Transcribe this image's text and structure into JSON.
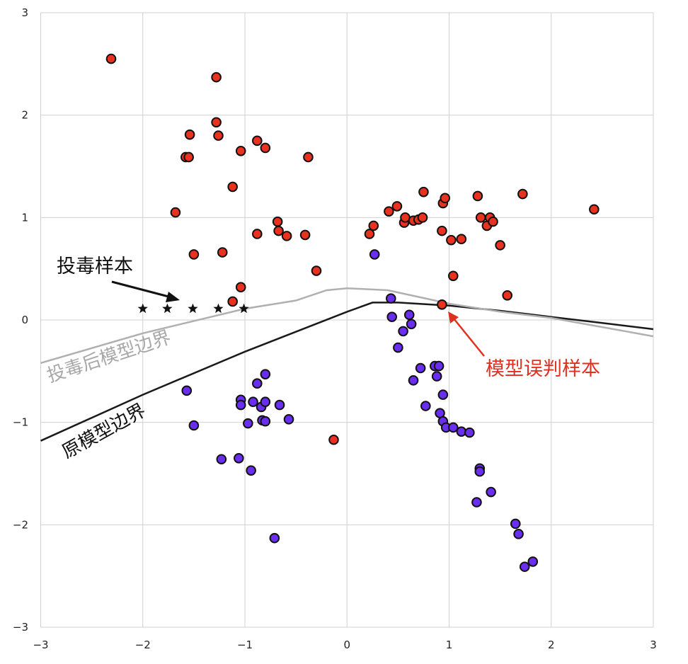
{
  "chart_data": {
    "type": "scatter",
    "xlim": [
      -3,
      3
    ],
    "ylim": [
      -3,
      3
    ],
    "x_ticks": [
      "−3",
      "−2",
      "−1",
      "0",
      "1",
      "2",
      "3"
    ],
    "y_ticks": [
      "3",
      "2",
      "1",
      "0",
      "−1",
      "−2",
      "−3"
    ],
    "grid": true,
    "colors": {
      "class_red": "#e8321f",
      "class_purple": "#6a2ef0",
      "poison_marker": "#111111",
      "poisoned_boundary": "#b0b0b0",
      "original_boundary": "#1a1a1a",
      "misclassified_label": "#e03020"
    },
    "series": [
      {
        "marker": "circle",
        "color": "class_red",
        "points": [
          [
            -2.31,
            2.55
          ],
          [
            -1.28,
            2.37
          ],
          [
            -1.28,
            1.93
          ],
          [
            -1.26,
            1.8
          ],
          [
            -1.54,
            1.81
          ],
          [
            -1.58,
            1.59
          ],
          [
            -1.55,
            1.59
          ],
          [
            -1.04,
            1.65
          ],
          [
            -0.88,
            1.75
          ],
          [
            -0.8,
            1.68
          ],
          [
            -0.38,
            1.59
          ],
          [
            -1.12,
            1.3
          ],
          [
            -1.68,
            1.05
          ],
          [
            -0.68,
            0.96
          ],
          [
            -0.67,
            0.87
          ],
          [
            -0.88,
            0.84
          ],
          [
            -0.59,
            0.82
          ],
          [
            -0.41,
            0.83
          ],
          [
            -1.5,
            0.64
          ],
          [
            -1.22,
            0.66
          ],
          [
            -0.3,
            0.48
          ],
          [
            -1.04,
            0.32
          ],
          [
            -1.12,
            0.18
          ],
          [
            -0.13,
            -1.17
          ],
          [
            0.22,
            0.84
          ],
          [
            0.26,
            0.92
          ],
          [
            0.41,
            1.06
          ],
          [
            0.49,
            1.11
          ],
          [
            0.56,
            0.95
          ],
          [
            0.57,
            1.0
          ],
          [
            0.65,
            0.97
          ],
          [
            0.7,
            0.98
          ],
          [
            0.74,
            1.0
          ],
          [
            0.75,
            1.25
          ],
          [
            0.94,
            1.14
          ],
          [
            0.96,
            1.19
          ],
          [
            0.93,
            0.87
          ],
          [
            1.02,
            0.78
          ],
          [
            1.12,
            0.79
          ],
          [
            1.04,
            0.43
          ],
          [
            1.28,
            1.21
          ],
          [
            1.31,
            1.0
          ],
          [
            1.37,
            0.92
          ],
          [
            1.4,
            1.0
          ],
          [
            1.43,
            0.96
          ],
          [
            1.5,
            0.73
          ],
          [
            1.57,
            0.24
          ],
          [
            1.72,
            1.23
          ],
          [
            2.42,
            1.08
          ],
          [
            0.93,
            0.15
          ]
        ]
      },
      {
        "marker": "circle",
        "color": "class_purple",
        "points": [
          [
            0.27,
            0.64
          ],
          [
            0.43,
            0.21
          ],
          [
            0.44,
            0.03
          ],
          [
            0.55,
            -0.11
          ],
          [
            0.61,
            0.05
          ],
          [
            0.63,
            -0.04
          ],
          [
            0.5,
            -0.27
          ],
          [
            0.65,
            -0.59
          ],
          [
            0.72,
            -0.47
          ],
          [
            0.77,
            -0.84
          ],
          [
            0.86,
            -0.45
          ],
          [
            0.88,
            -0.55
          ],
          [
            0.9,
            -0.45
          ],
          [
            0.91,
            -0.91
          ],
          [
            0.94,
            -0.73
          ],
          [
            0.94,
            -0.99
          ],
          [
            0.97,
            -1.05
          ],
          [
            1.04,
            -1.05
          ],
          [
            1.12,
            -1.09
          ],
          [
            1.2,
            -1.1
          ],
          [
            1.3,
            -1.45
          ],
          [
            1.3,
            -1.48
          ],
          [
            1.41,
            -1.68
          ],
          [
            1.27,
            -1.78
          ],
          [
            1.65,
            -1.99
          ],
          [
            1.68,
            -2.09
          ],
          [
            1.74,
            -2.41
          ],
          [
            1.82,
            -2.36
          ],
          [
            -1.57,
            -0.69
          ],
          [
            -1.5,
            -1.03
          ],
          [
            -1.23,
            -1.36
          ],
          [
            -1.06,
            -1.35
          ],
          [
            -1.04,
            -0.78
          ],
          [
            -1.04,
            -0.83
          ],
          [
            -0.97,
            -1.01
          ],
          [
            -0.92,
            -0.8
          ],
          [
            -0.88,
            -0.62
          ],
          [
            -0.84,
            -0.85
          ],
          [
            -0.8,
            -0.8
          ],
          [
            -0.8,
            -0.53
          ],
          [
            -0.83,
            -0.98
          ],
          [
            -0.8,
            -0.99
          ],
          [
            -0.66,
            -0.83
          ],
          [
            -0.57,
            -0.97
          ],
          [
            -0.94,
            -1.47
          ],
          [
            -0.71,
            -2.13
          ]
        ]
      },
      {
        "marker": "star",
        "color": "poison_marker",
        "points": [
          [
            -2.0,
            0.11
          ],
          [
            -1.76,
            0.11
          ],
          [
            -1.51,
            0.11
          ],
          [
            -1.26,
            0.11
          ],
          [
            -1.01,
            0.11
          ]
        ]
      }
    ],
    "boundaries": [
      {
        "color": "original_boundary",
        "points": [
          [
            -3.0,
            -1.18
          ],
          [
            -2.0,
            -0.73
          ],
          [
            -1.0,
            -0.31
          ],
          [
            0.0,
            0.08
          ],
          [
            0.25,
            0.17
          ],
          [
            0.5,
            0.17
          ],
          [
            1.0,
            0.14
          ],
          [
            1.5,
            0.09
          ],
          [
            2.0,
            0.03
          ],
          [
            2.5,
            -0.03
          ],
          [
            3.0,
            -0.09
          ]
        ]
      },
      {
        "color": "poisoned_boundary",
        "points": [
          [
            -3.0,
            -0.42
          ],
          [
            -2.0,
            -0.13
          ],
          [
            -1.0,
            0.11
          ],
          [
            -0.5,
            0.19
          ],
          [
            -0.2,
            0.29
          ],
          [
            0.0,
            0.31
          ],
          [
            0.4,
            0.29
          ],
          [
            1.0,
            0.16
          ],
          [
            1.5,
            0.08
          ],
          [
            2.0,
            0.02
          ],
          [
            2.5,
            -0.07
          ],
          [
            3.0,
            -0.16
          ]
        ]
      }
    ],
    "annotations": {
      "poison_samples": "投毒样本",
      "poisoned_boundary": "投毒后模型边界",
      "original_boundary": "原模型边界",
      "misclassified_sample": "模型误判样本"
    }
  }
}
